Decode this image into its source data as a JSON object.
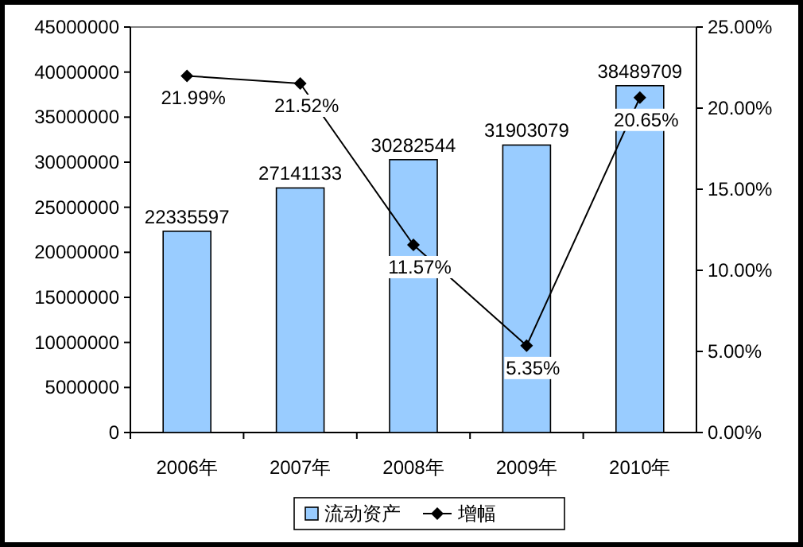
{
  "chart_data": {
    "type": "bar",
    "categories": [
      "2006年",
      "2007年",
      "2008年",
      "2009年",
      "2010年"
    ],
    "series": [
      {
        "name": "流动资产",
        "color": "#99ccff",
        "values": [
          22335597,
          27141133,
          30282544,
          31903079,
          38489709
        ],
        "value_labels": [
          "22335597",
          "27141133",
          "30282544",
          "31903079",
          "38489709"
        ]
      },
      {
        "name": "增幅",
        "type": "line",
        "axis": "y2",
        "color": "#000000",
        "values": [
          21.99,
          21.52,
          11.57,
          5.35,
          20.65
        ],
        "value_labels": [
          "21.99%",
          "21.52%",
          "11.57%",
          "5.35%",
          "20.65%"
        ]
      }
    ],
    "ylim": [
      0,
      45000000
    ],
    "yticks": [
      0,
      5000000,
      10000000,
      15000000,
      20000000,
      25000000,
      30000000,
      35000000,
      40000000,
      45000000
    ],
    "y2lim": [
      0,
      25
    ],
    "y2ticks": [
      {
        "value": 0,
        "label": "0.00%"
      },
      {
        "value": 5,
        "label": "5.00%"
      },
      {
        "value": 10,
        "label": "10.00%"
      },
      {
        "value": 15,
        "label": "15.00%"
      },
      {
        "value": 20,
        "label": "20.00%"
      },
      {
        "value": 25,
        "label": "25.00%"
      }
    ],
    "marker": "diamond",
    "line_style": "solid",
    "legend": "bottom",
    "grid": false
  }
}
